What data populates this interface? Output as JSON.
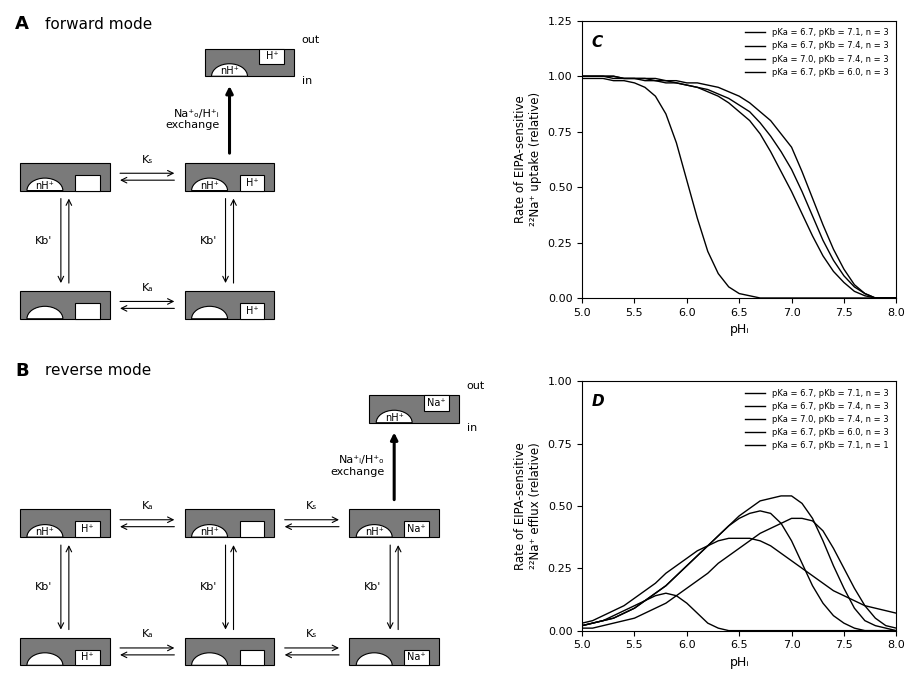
{
  "diagrams": [
    {
      "label": "A",
      "title": "forward mode",
      "out": "out",
      "in": "in",
      "exchange": "Na⁺ₒ/H⁺ᵢ\nexchange",
      "exported": {
        "modifier": "nH⁺",
        "site": "H⁺"
      },
      "states": [
        [
          {
            "modifier": "nH⁺",
            "site": null
          },
          {
            "modifier": "nH⁺",
            "site": "H⁺"
          }
        ],
        [
          {
            "modifier": null,
            "site": null
          },
          {
            "modifier": null,
            "site": "H⁺"
          }
        ]
      ],
      "horizontal_constants": [
        [
          "Kₛ"
        ],
        [
          "Kₐ"
        ]
      ],
      "vertical_constant": "Kb'"
    },
    {
      "label": "B",
      "title": "reverse mode",
      "out": "out",
      "in": "in",
      "exchange": "Na⁺ᵢ/H⁺ₒ\nexchange",
      "exported": {
        "modifier": "nH⁺",
        "site": "Na⁺"
      },
      "states": [
        [
          {
            "modifier": "nH⁺",
            "site": "H⁺"
          },
          {
            "modifier": "nH⁺",
            "site": null
          },
          {
            "modifier": "nH⁺",
            "site": "Na⁺"
          }
        ],
        [
          {
            "modifier": null,
            "site": "H⁺"
          },
          {
            "modifier": null,
            "site": null
          },
          {
            "modifier": null,
            "site": "Na⁺"
          }
        ]
      ],
      "horizontal_constants": [
        [
          "Kₐ",
          "Kₛ"
        ],
        [
          "Kₐ",
          "Kₛ"
        ]
      ],
      "vertical_constant": "Kb'"
    }
  ],
  "chart_data": [
    {
      "type": "line",
      "panel_label": "C",
      "x_label": "pHᵢ",
      "y_label": "Rate of EIPA-sensitive\n²²Na⁺ uptake (relative)",
      "x": [
        5.0,
        5.1,
        5.2,
        5.3,
        5.4,
        5.5,
        5.6,
        5.7,
        5.8,
        5.9,
        6.0,
        6.1,
        6.2,
        6.3,
        6.4,
        6.5,
        6.6,
        6.7,
        6.8,
        6.9,
        7.0,
        7.1,
        7.2,
        7.3,
        7.4,
        7.5,
        7.6,
        7.7,
        7.8,
        7.9,
        8.0
      ],
      "xlim": [
        5.0,
        8.0
      ],
      "xticks": [
        {
          "value": 5.0,
          "label": "5.0"
        },
        {
          "value": 5.5,
          "label": "5.5"
        },
        {
          "value": 6.0,
          "label": "6.0"
        },
        {
          "value": 6.5,
          "label": "6.5"
        },
        {
          "value": 7.0,
          "label": "7.0"
        },
        {
          "value": 7.5,
          "label": "7.5"
        },
        {
          "value": 8.0,
          "label": "8.0"
        }
      ],
      "ylim": [
        0.0,
        1.25
      ],
      "yticks": [
        {
          "value": 0.0,
          "label": "0.00"
        },
        {
          "value": 0.25,
          "label": "0.25"
        },
        {
          "value": 0.5,
          "label": "0.50"
        },
        {
          "value": 0.75,
          "label": "0.75"
        },
        {
          "value": 1.0,
          "label": "1.00"
        },
        {
          "value": 1.25,
          "label": "1.25"
        }
      ],
      "legend": "upper right",
      "series": [
        {
          "name": "pKa = 6.7, pKb = 7.1, n = 3",
          "color": "#000000",
          "values": [
            1.0,
            1.0,
            1.0,
            1.0,
            0.99,
            0.99,
            0.99,
            0.98,
            0.98,
            0.97,
            0.96,
            0.95,
            0.93,
            0.91,
            0.88,
            0.84,
            0.8,
            0.74,
            0.66,
            0.57,
            0.48,
            0.38,
            0.28,
            0.19,
            0.12,
            0.07,
            0.03,
            0.01,
            0.0,
            0.0,
            0.0
          ]
        },
        {
          "name": "pKa = 6.7, pKb = 7.4, n = 3",
          "color": "#000000",
          "values": [
            1.0,
            1.0,
            1.0,
            0.99,
            0.99,
            0.99,
            0.98,
            0.98,
            0.97,
            0.97,
            0.96,
            0.95,
            0.94,
            0.92,
            0.9,
            0.87,
            0.84,
            0.79,
            0.73,
            0.66,
            0.58,
            0.48,
            0.37,
            0.26,
            0.17,
            0.1,
            0.05,
            0.02,
            0.0,
            0.0,
            0.0
          ]
        },
        {
          "name": "pKa = 7.0, pKb = 7.4, n = 3",
          "color": "#000000",
          "values": [
            1.0,
            1.0,
            1.0,
            1.0,
            0.99,
            0.99,
            0.99,
            0.99,
            0.98,
            0.98,
            0.97,
            0.97,
            0.96,
            0.95,
            0.93,
            0.91,
            0.88,
            0.84,
            0.8,
            0.74,
            0.68,
            0.57,
            0.45,
            0.33,
            0.22,
            0.13,
            0.06,
            0.02,
            0.0,
            0.0,
            0.0
          ]
        },
        {
          "name": "pKa = 6.7, pKb = 6.0, n = 3",
          "color": "#000000",
          "values": [
            0.99,
            0.99,
            0.99,
            0.98,
            0.98,
            0.97,
            0.95,
            0.91,
            0.83,
            0.7,
            0.53,
            0.36,
            0.21,
            0.11,
            0.05,
            0.02,
            0.01,
            0.0,
            0.0,
            0.0,
            0.0,
            0.0,
            0.0,
            0.0,
            0.0,
            0.0,
            0.0,
            0.0,
            0.0,
            0.0,
            0.0
          ]
        }
      ]
    },
    {
      "type": "line",
      "panel_label": "D",
      "x_label": "pHᵢ",
      "y_label": "Rate of EIPA-sensitive\n²²Na⁺ efflux (relative)",
      "x": [
        5.0,
        5.1,
        5.2,
        5.3,
        5.4,
        5.5,
        5.6,
        5.7,
        5.8,
        5.9,
        6.0,
        6.1,
        6.2,
        6.3,
        6.4,
        6.5,
        6.6,
        6.7,
        6.8,
        6.9,
        7.0,
        7.1,
        7.2,
        7.3,
        7.4,
        7.5,
        7.6,
        7.7,
        7.8,
        7.9,
        8.0
      ],
      "xlim": [
        5.0,
        8.0
      ],
      "xticks": [
        {
          "value": 5.0,
          "label": "5.0"
        },
        {
          "value": 5.5,
          "label": "5.5"
        },
        {
          "value": 6.0,
          "label": "6.0"
        },
        {
          "value": 6.5,
          "label": "6.5"
        },
        {
          "value": 7.0,
          "label": "7.0"
        },
        {
          "value": 7.5,
          "label": "7.5"
        },
        {
          "value": 8.0,
          "label": "8.0"
        }
      ],
      "ylim": [
        0.0,
        1.0
      ],
      "yticks": [
        {
          "value": 0.0,
          "label": "0.00"
        },
        {
          "value": 0.25,
          "label": "0.25"
        },
        {
          "value": 0.5,
          "label": "0.50"
        },
        {
          "value": 0.75,
          "label": "0.75"
        },
        {
          "value": 1.0,
          "label": "1.00"
        }
      ],
      "legend": "upper right",
      "series": [
        {
          "name": "pKa = 6.7, pKb = 7.1, n = 3",
          "color": "#000000",
          "values": [
            0.02,
            0.03,
            0.04,
            0.05,
            0.07,
            0.09,
            0.12,
            0.15,
            0.18,
            0.22,
            0.26,
            0.3,
            0.34,
            0.38,
            0.42,
            0.45,
            0.47,
            0.48,
            0.47,
            0.43,
            0.36,
            0.27,
            0.18,
            0.11,
            0.06,
            0.03,
            0.01,
            0.0,
            0.0,
            0.0,
            0.0
          ]
        },
        {
          "name": "pKa = 6.7, pKb = 7.4, n = 3",
          "color": "#000000",
          "values": [
            0.02,
            0.03,
            0.04,
            0.05,
            0.07,
            0.09,
            0.12,
            0.15,
            0.18,
            0.22,
            0.26,
            0.3,
            0.34,
            0.38,
            0.42,
            0.46,
            0.49,
            0.52,
            0.53,
            0.54,
            0.54,
            0.51,
            0.45,
            0.36,
            0.26,
            0.17,
            0.09,
            0.04,
            0.02,
            0.01,
            0.0
          ]
        },
        {
          "name": "pKa = 7.0, pKb = 7.4, n = 3",
          "color": "#000000",
          "values": [
            0.01,
            0.01,
            0.02,
            0.03,
            0.04,
            0.05,
            0.07,
            0.09,
            0.11,
            0.14,
            0.17,
            0.2,
            0.23,
            0.27,
            0.3,
            0.33,
            0.36,
            0.39,
            0.41,
            0.43,
            0.45,
            0.45,
            0.44,
            0.4,
            0.33,
            0.25,
            0.17,
            0.1,
            0.05,
            0.02,
            0.01
          ]
        },
        {
          "name": "pKa = 6.7, pKb = 6.0, n = 3",
          "color": "#000000",
          "values": [
            0.02,
            0.03,
            0.04,
            0.06,
            0.08,
            0.1,
            0.12,
            0.14,
            0.15,
            0.14,
            0.11,
            0.07,
            0.03,
            0.01,
            0.0,
            0.0,
            0.0,
            0.0,
            0.0,
            0.0,
            0.0,
            0.0,
            0.0,
            0.0,
            0.0,
            0.0,
            0.0,
            0.0,
            0.0,
            0.0,
            0.0
          ]
        },
        {
          "name": "pKa = 6.7, pKb = 7.1, n = 1",
          "color": "#000000",
          "values": [
            0.03,
            0.04,
            0.06,
            0.08,
            0.1,
            0.13,
            0.16,
            0.19,
            0.23,
            0.26,
            0.29,
            0.32,
            0.34,
            0.36,
            0.37,
            0.37,
            0.37,
            0.36,
            0.34,
            0.31,
            0.28,
            0.25,
            0.22,
            0.19,
            0.16,
            0.14,
            0.12,
            0.1,
            0.09,
            0.08,
            0.07
          ]
        }
      ]
    }
  ]
}
